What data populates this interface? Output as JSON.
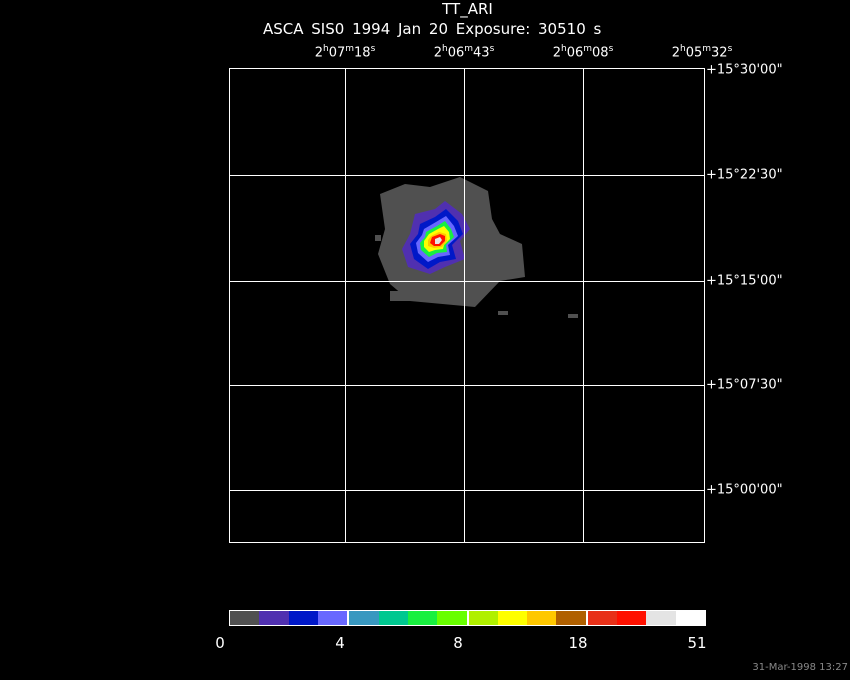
{
  "title": "TT_ARI",
  "subtitle": "ASCA SIS0   1994 Jan 20   Exposure: 30510 s",
  "ra_labels": [
    {
      "h": "2",
      "m": "07",
      "s": "18"
    },
    {
      "h": "2",
      "m": "06",
      "s": "43"
    },
    {
      "h": "2",
      "m": "06",
      "s": "08"
    },
    {
      "h": "2",
      "m": "05",
      "s": "32"
    }
  ],
  "dec_labels": [
    "+15°30'00\"",
    "+15°22'30\"",
    "+15°15'00\"",
    "+15°07'30\"",
    "+15°00'00\""
  ],
  "colorbar": {
    "colors": [
      "#505050",
      "#5030b0",
      "#0018c8",
      "#6868ff",
      "#3898c0",
      "#00c890",
      "#18f040",
      "#68ff00",
      "#b0f000",
      "#ffff00",
      "#ffc800",
      "#b06000",
      "#e83018",
      "#ff1000",
      "#e4e4e4",
      "#ffffff"
    ],
    "tick_labels": [
      "0",
      "4",
      "8",
      "18",
      "51"
    ]
  },
  "timestamp": "31-Mar-1998 13:27"
}
